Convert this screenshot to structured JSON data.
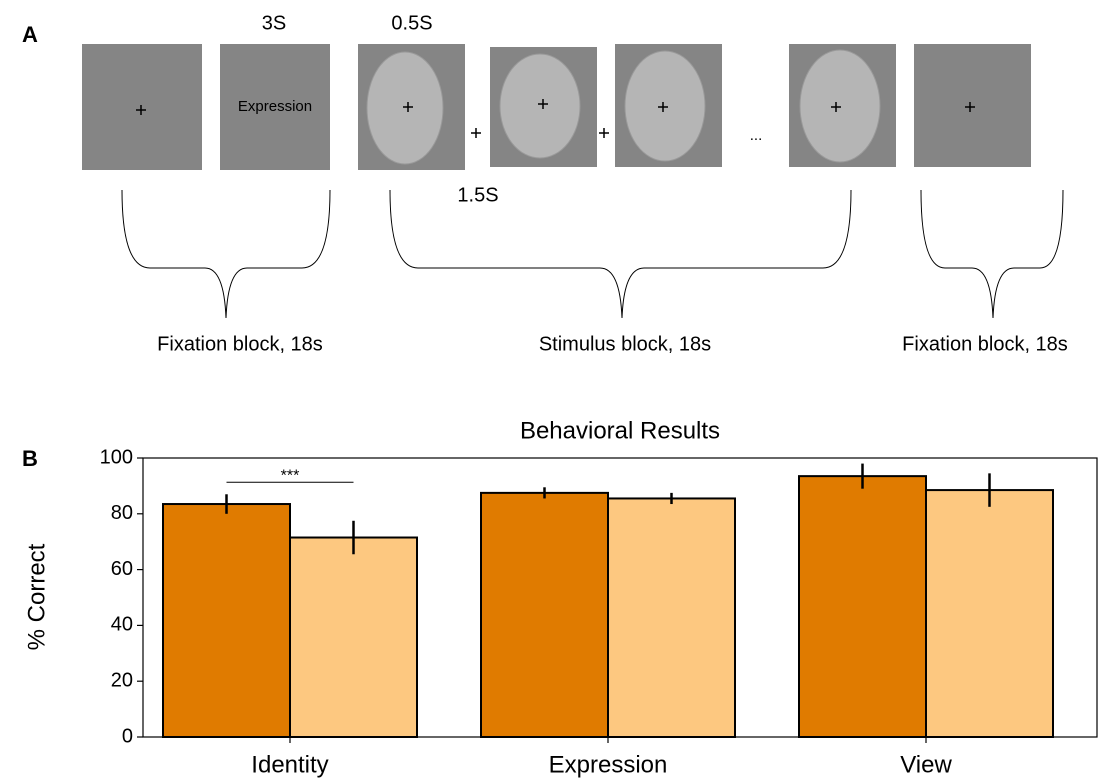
{
  "panel_a": {
    "label": "A",
    "duration_cue": "3S",
    "duration_face": "0.5S",
    "duration_isi": "1.5S",
    "cue_text": "Expression",
    "ellipsis": "...",
    "blocks": [
      "Fixation block, 18s",
      "Stimulus block, 18s",
      "Fixation block, 18s"
    ]
  },
  "chart_data": {
    "type": "bar",
    "panel_label": "B",
    "title": "Behavioral Results",
    "y_label": "% Correct",
    "categories": [
      "Identity",
      "Expression",
      "View"
    ],
    "series": [
      {
        "color": "#e07b00",
        "values": [
          83.5,
          87.5,
          93.5
        ],
        "errors": [
          3.5,
          2,
          4.5
        ]
      },
      {
        "color": "#fdc880",
        "values": [
          71.5,
          85.5,
          88.5
        ],
        "errors": [
          6,
          2,
          6
        ]
      }
    ],
    "ylim": [
      0,
      100
    ],
    "yticks": [
      0,
      20,
      40,
      60,
      80,
      100
    ],
    "annotations": [
      {
        "text": "***",
        "category": 0
      }
    ]
  }
}
